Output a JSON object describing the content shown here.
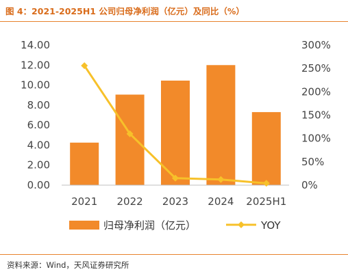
{
  "header": {
    "title": "图 4：2021-2025H1 公司归母净利润（亿元）及同比（%）"
  },
  "footer": {
    "source": "资料来源：Wind，天风证券研究所"
  },
  "colors": {
    "bar": "#f28a2a",
    "line": "#f7c12a",
    "rule": "#e8822c",
    "title": "#d96c1b"
  },
  "chart_data": {
    "type": "bar",
    "categories": [
      "2021",
      "2022",
      "2023",
      "2024",
      "2025H1"
    ],
    "series": [
      {
        "name": "归母净利润（亿元）",
        "type": "bar",
        "axis": "left",
        "values": [
          4.25,
          9.05,
          10.45,
          12.0,
          7.3
        ]
      },
      {
        "name": "YOY",
        "type": "line",
        "axis": "right",
        "values": [
          256,
          110,
          15,
          12,
          4
        ]
      }
    ],
    "y_left": {
      "min": 0,
      "max": 14,
      "ticks": [
        "0.00",
        "2.00",
        "4.00",
        "6.00",
        "8.00",
        "10.00",
        "12.00",
        "14.00"
      ]
    },
    "y_right": {
      "min": 0,
      "max": 300,
      "ticks": [
        "0%",
        "50%",
        "100%",
        "150%",
        "200%",
        "250%",
        "300%"
      ]
    },
    "grid": false,
    "legend_position": "bottom"
  }
}
